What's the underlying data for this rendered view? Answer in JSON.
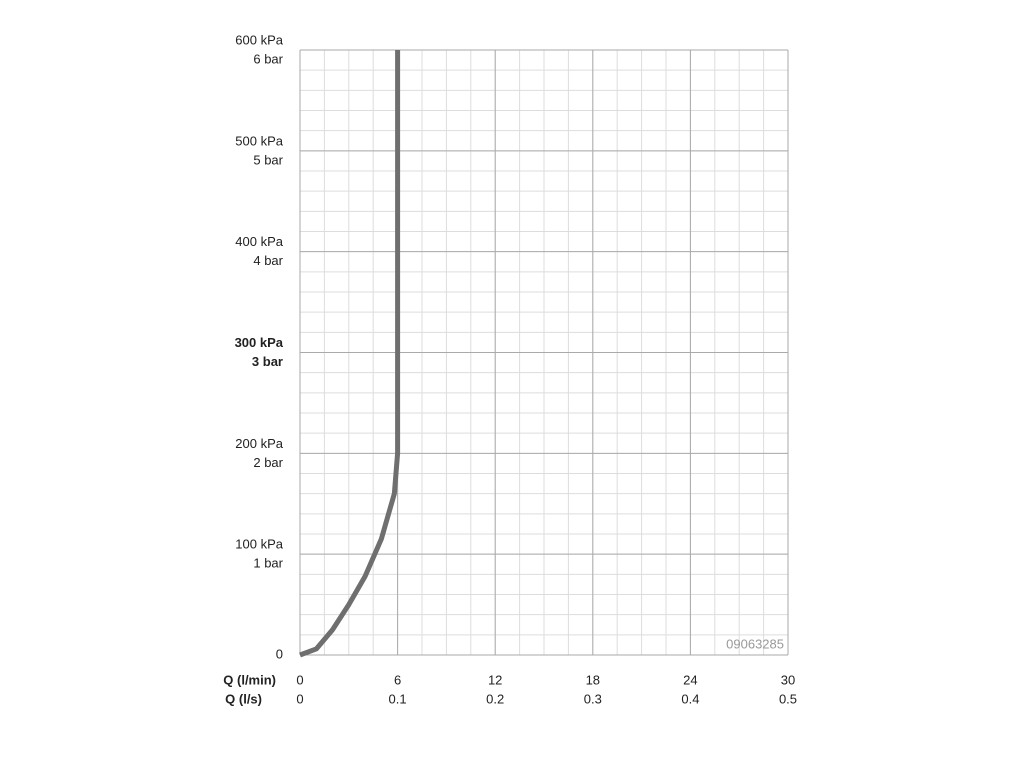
{
  "chart_data": {
    "type": "line",
    "xlabel": "Q (l/min)",
    "x2label": "Q (l/s)",
    "xlim": [
      0,
      30
    ],
    "xticks": [
      0,
      6,
      12,
      18,
      24,
      30
    ],
    "x2lim": [
      0,
      0.5
    ],
    "x2ticks": [
      0,
      0.1,
      0.2,
      0.3,
      0.4,
      0.5
    ],
    "ylim": [
      0,
      600
    ],
    "yticks": [
      0,
      {
        "value": 100,
        "label": "100 kPa"
      },
      {
        "value": 200,
        "label": "200 kPa"
      },
      {
        "value": 300,
        "label": "300 kPa"
      },
      {
        "value": 400,
        "label": "400 kPa"
      },
      {
        "value": 500,
        "label": "500 kPa"
      },
      {
        "value": 600,
        "label": "600 kPa"
      }
    ],
    "ytick_sublabels": [
      null,
      "1 bar",
      "2 bar",
      "3 bar",
      "4 bar",
      "5 bar",
      "6 bar"
    ],
    "emphasized_ytick": 300,
    "grid": true,
    "minor_grid": {
      "x": 1.5,
      "y": 20
    },
    "annotation": "09063285",
    "series": [
      {
        "color": "#6f6f6f",
        "x": [
          0,
          1,
          2,
          3,
          4,
          5,
          5.8,
          6,
          6
        ],
        "values": [
          0,
          6,
          25,
          50,
          78,
          115,
          160,
          200,
          600
        ]
      }
    ]
  }
}
